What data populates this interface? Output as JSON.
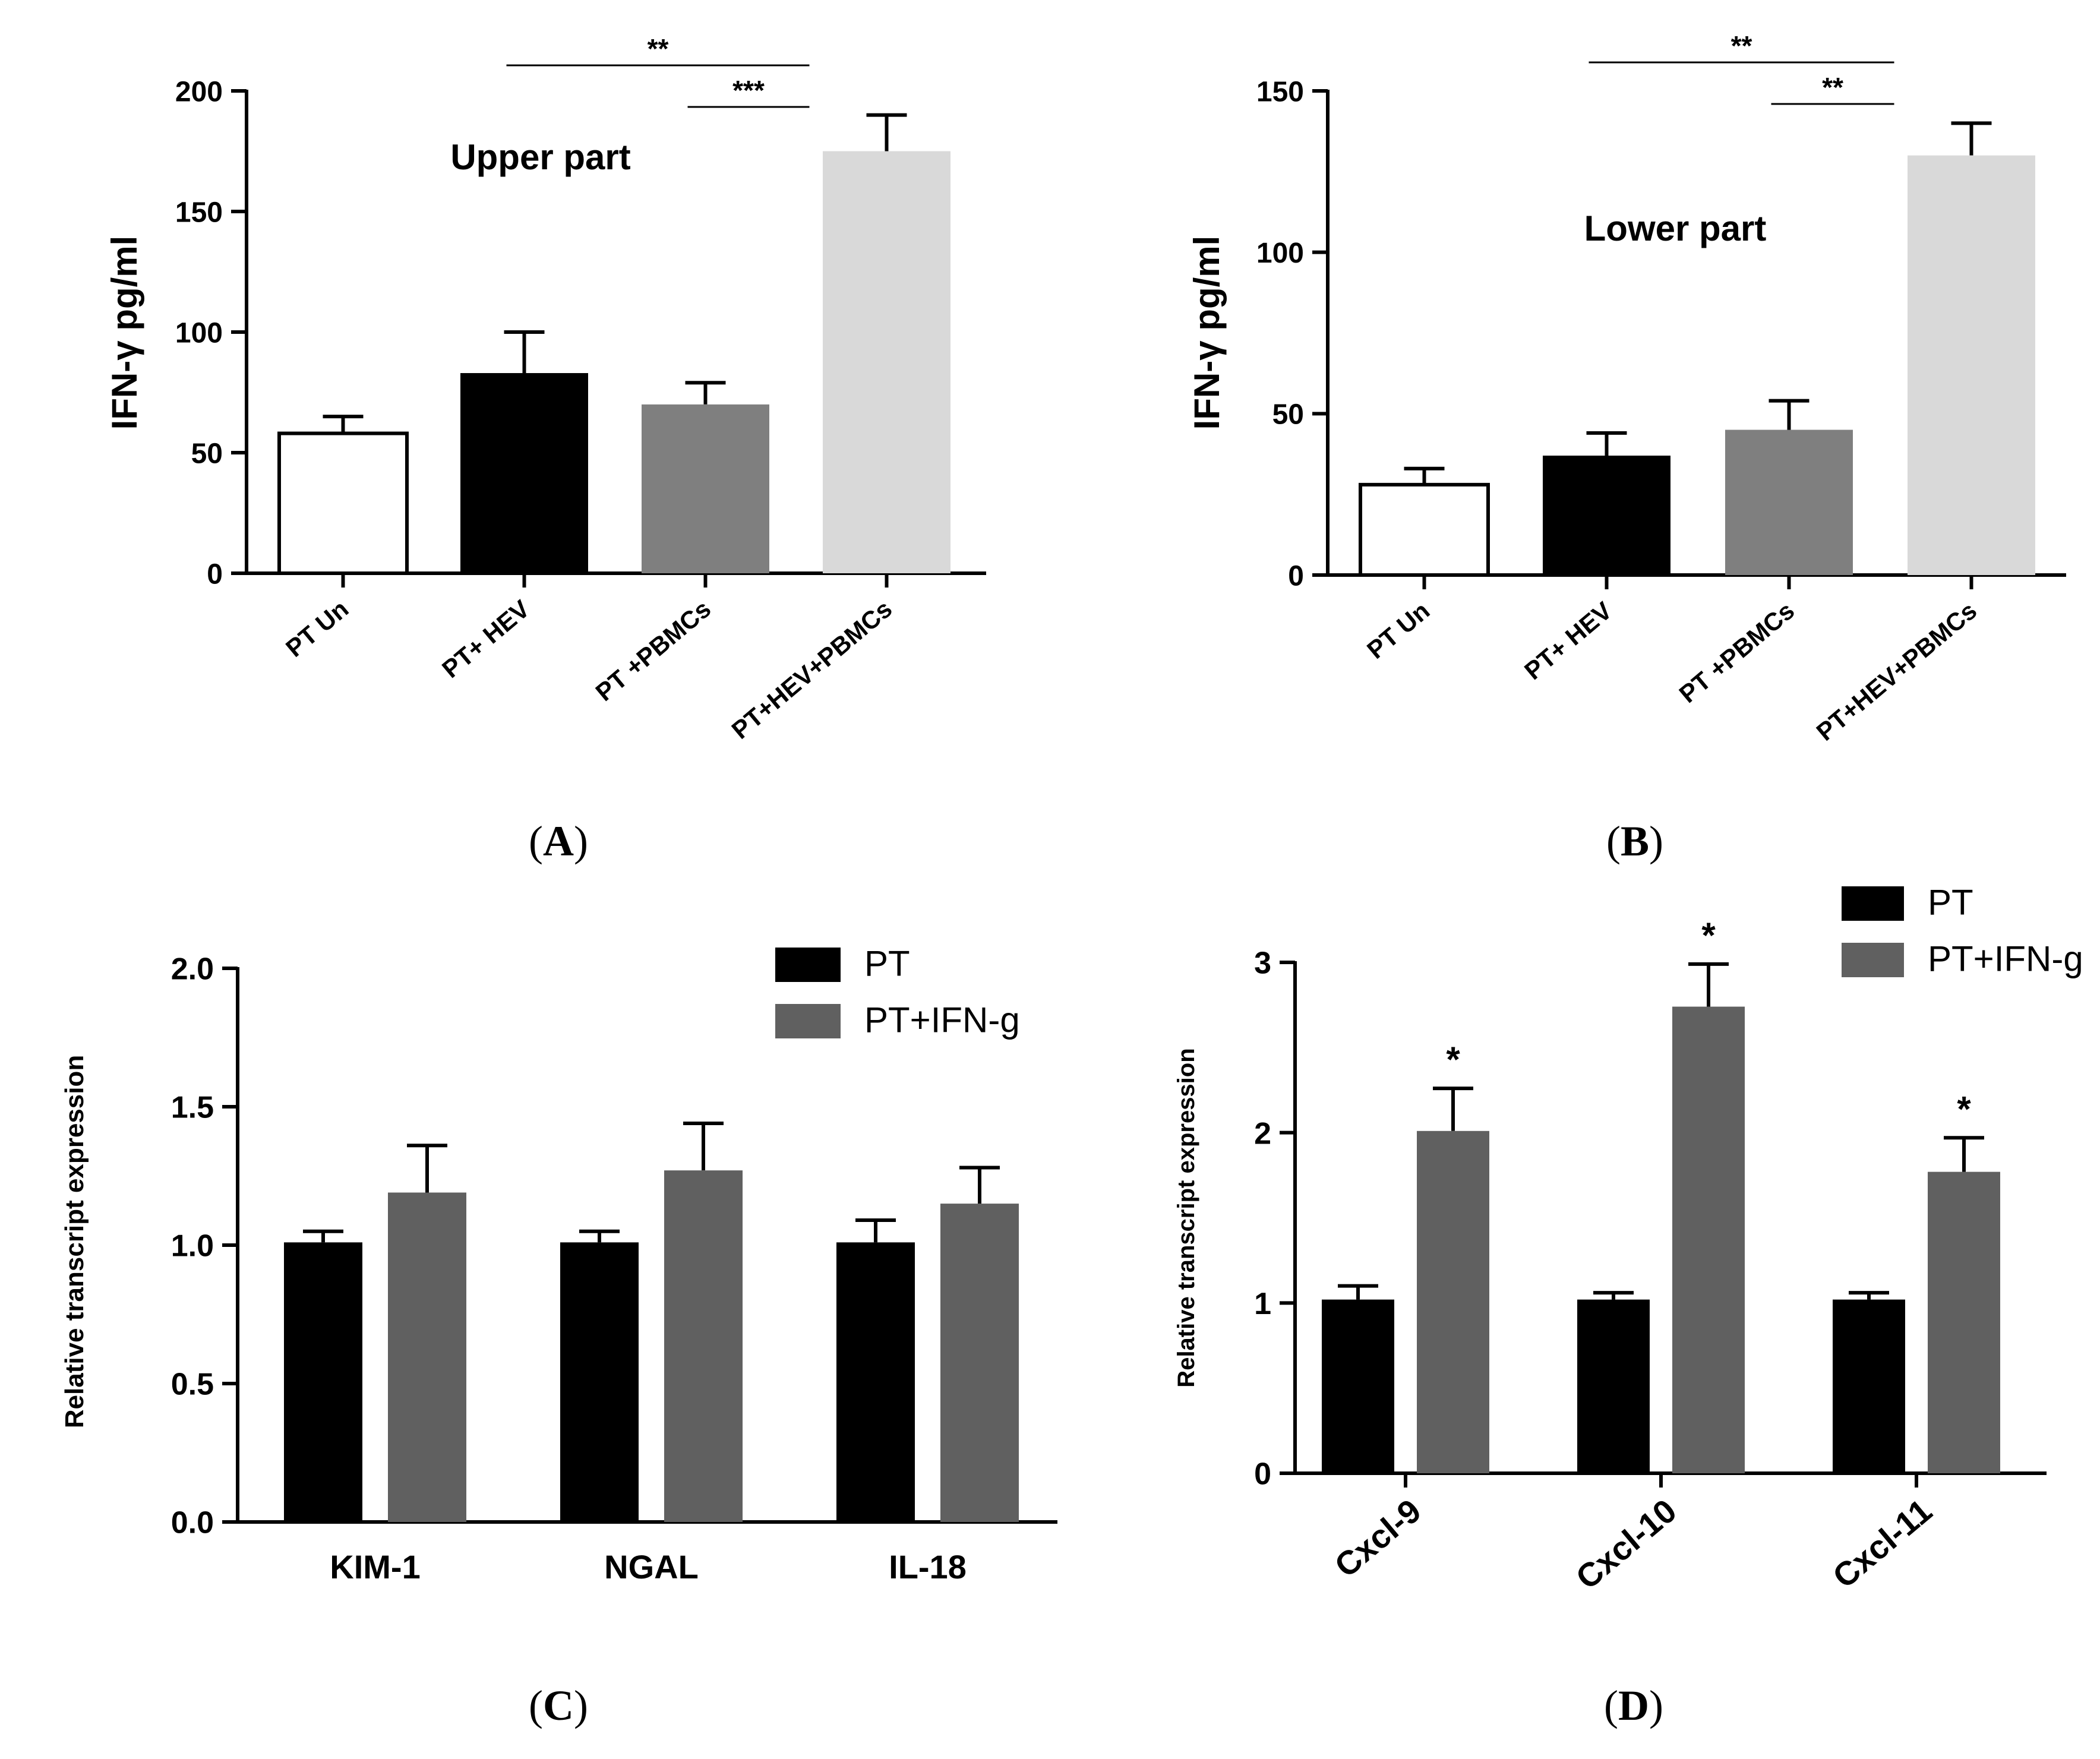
{
  "colors": {
    "white_bar": "#ffffff",
    "black_bar": "#000000",
    "gray_bar": "#7f7f7f",
    "light_bar": "#d9d9d9",
    "ifn_bar": "#606060",
    "axis": "#000000"
  },
  "chart_data": [
    {
      "panel": "A",
      "type": "bar",
      "ylabel": "IFN-γ  pg/ml",
      "annotation": "Upper part",
      "ylim": [
        0,
        200
      ],
      "yticks": [
        0,
        50,
        100,
        150,
        200
      ],
      "categories": [
        "PT Un",
        "PT+ HEV",
        "PT +PBMCs",
        "PT+HEV+PBMCs"
      ],
      "values": [
        58,
        83,
        70,
        175
      ],
      "errors": [
        7,
        17,
        9,
        15
      ],
      "fills": [
        "#ffffff",
        "#000000",
        "#7f7f7f",
        "#d9d9d9"
      ],
      "significance": [
        {
          "from": 1,
          "to": 3,
          "label": "**"
        },
        {
          "from": 2,
          "to": 3,
          "label": "***"
        }
      ],
      "caption": "A"
    },
    {
      "panel": "B",
      "type": "bar",
      "ylabel": "IFN-γ  pg/ml",
      "annotation": "Lower part",
      "ylim": [
        0,
        150
      ],
      "yticks": [
        0,
        50,
        100,
        150
      ],
      "categories": [
        "PT Un",
        "PT+ HEV",
        "PT +PBMCs",
        "PT+HEV+PBMCs"
      ],
      "values": [
        28,
        37,
        45,
        130
      ],
      "errors": [
        5,
        7,
        9,
        10
      ],
      "fills": [
        "#ffffff",
        "#000000",
        "#7f7f7f",
        "#d9d9d9"
      ],
      "significance": [
        {
          "from": 1,
          "to": 3,
          "label": "**"
        },
        {
          "from": 2,
          "to": 3,
          "label": "**"
        }
      ],
      "caption": "B"
    },
    {
      "panel": "C",
      "type": "bar",
      "ylabel": "Relative transcript expression",
      "ylim": [
        0,
        2.0
      ],
      "yticks": [
        "0.0",
        "0.5",
        "1.0",
        "1.5",
        "2.0"
      ],
      "categories": [
        "KIM-1",
        "NGAL",
        "IL-18"
      ],
      "series": [
        {
          "name": "PT",
          "values": [
            1.01,
            1.01,
            1.01
          ],
          "errors": [
            0.04,
            0.04,
            0.08
          ]
        },
        {
          "name": "PT+IFN-g",
          "values": [
            1.19,
            1.27,
            1.15
          ],
          "errors": [
            0.17,
            0.17,
            0.13
          ]
        }
      ],
      "stars": [
        "",
        "",
        ""
      ],
      "caption": "C"
    },
    {
      "panel": "D",
      "type": "bar",
      "ylabel": "Relative transcript expression",
      "ylim": [
        0,
        3
      ],
      "yticks": [
        "0",
        "1",
        "2",
        "3"
      ],
      "categories": [
        "Cxcl-9",
        "Cxcl-10",
        "Cxcl-11"
      ],
      "series": [
        {
          "name": "PT",
          "values": [
            1.02,
            1.02,
            1.02
          ],
          "errors": [
            0.08,
            0.04,
            0.04
          ]
        },
        {
          "name": "PT+IFN-g",
          "values": [
            2.01,
            2.74,
            1.77
          ],
          "errors": [
            0.25,
            0.25,
            0.2
          ]
        }
      ],
      "stars": [
        "*",
        "*",
        "*"
      ],
      "caption": "D"
    }
  ]
}
